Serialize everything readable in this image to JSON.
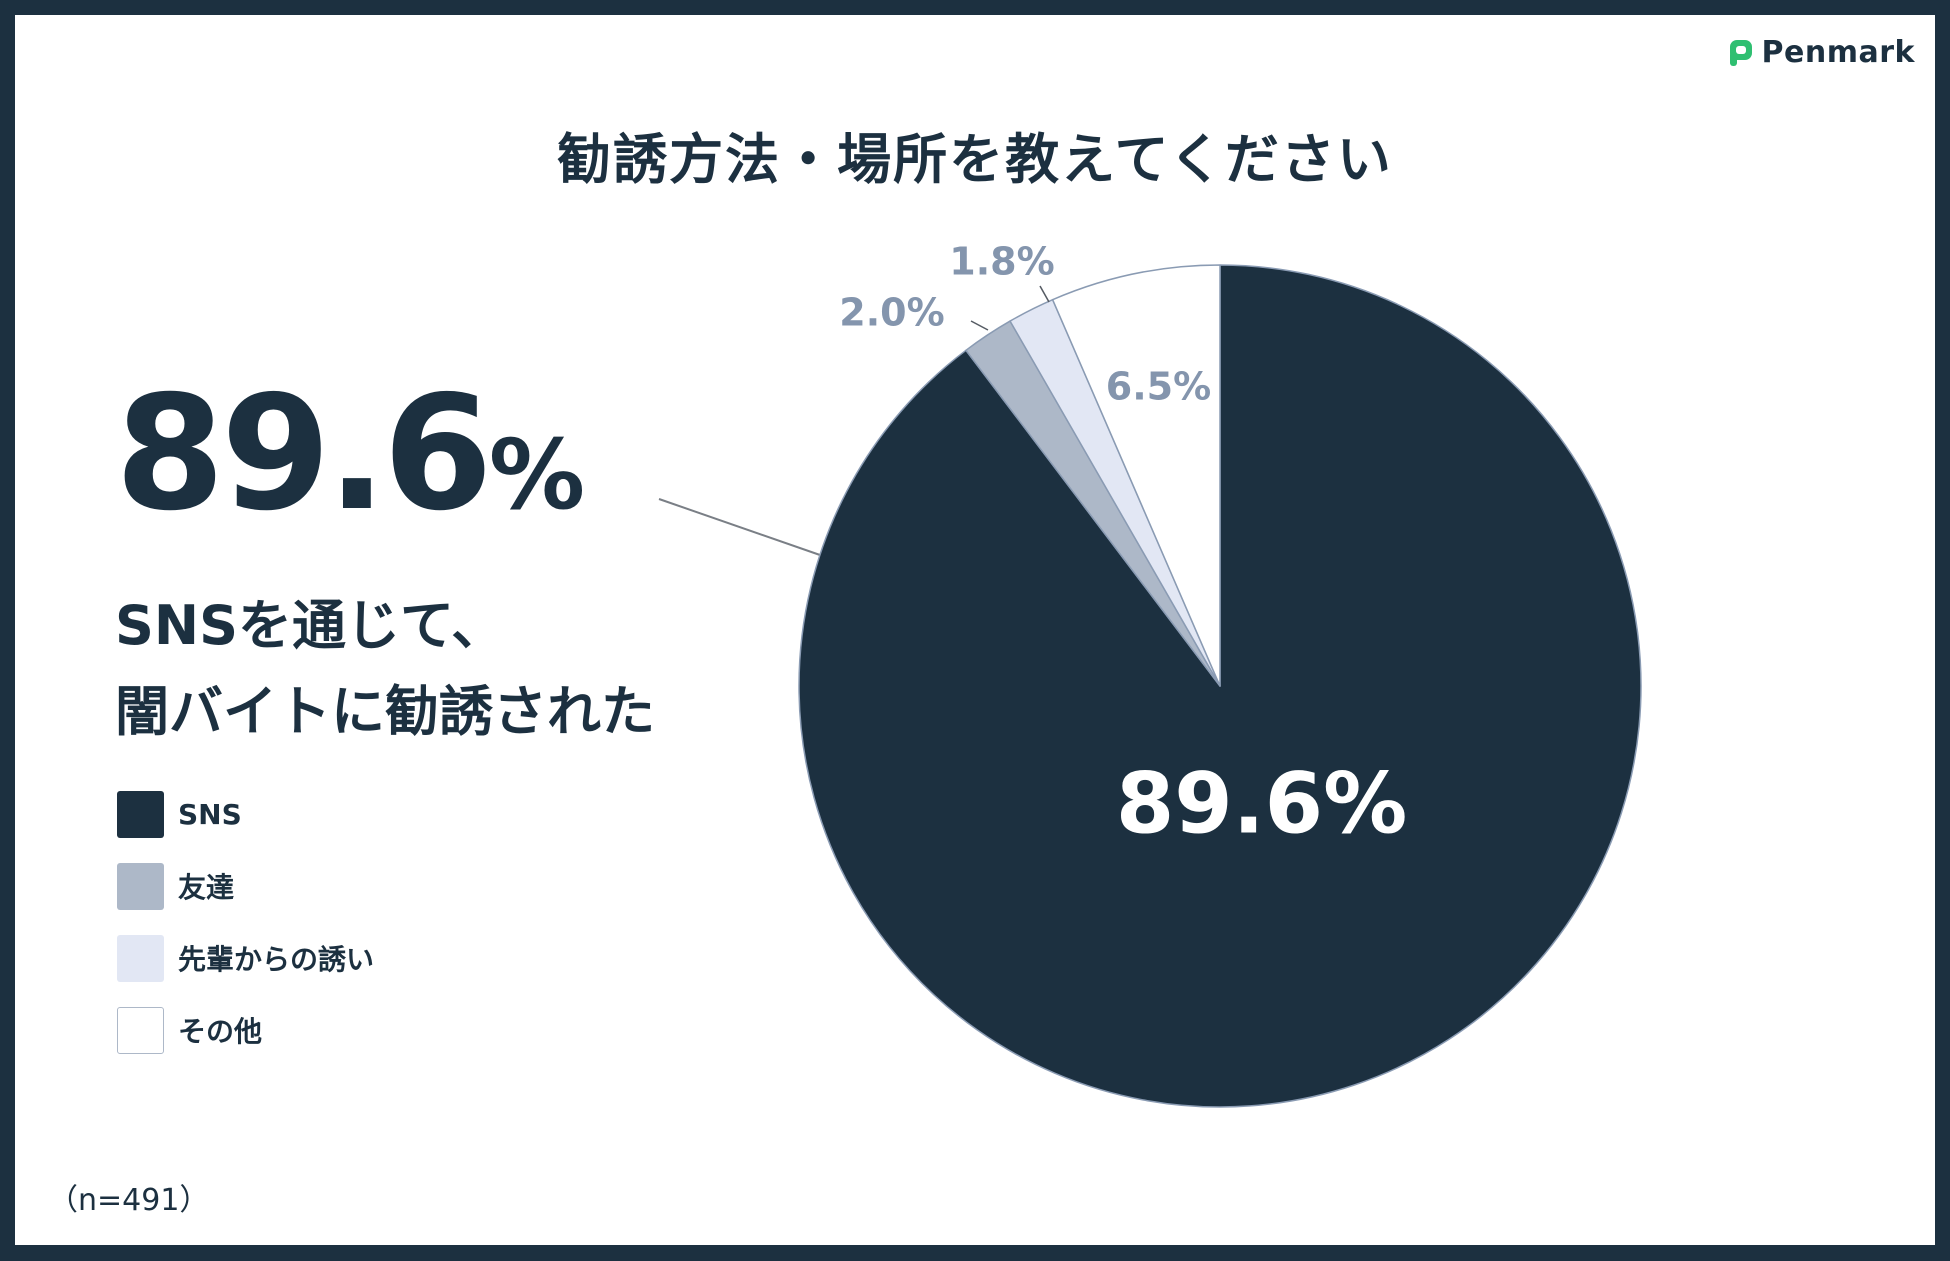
{
  "brand": {
    "name": "Penmark",
    "color": "#2fbf71"
  },
  "title": "勧誘方法・場所を教えてください",
  "headline": {
    "value": "89.6",
    "unit": "%",
    "line1": "SNSを通じて、",
    "line2": "闇バイトに勧誘された"
  },
  "sample_note": "（n=491）",
  "chart_data": {
    "type": "pie",
    "title": "勧誘方法・場所を教えてください",
    "start": "12 o'clock",
    "direction": "clockwise",
    "slices": [
      {
        "name": "SNS",
        "value": 89.6,
        "label": "89.6%",
        "color": "#1c3040",
        "label_color": "#ffffff"
      },
      {
        "name": "友達",
        "value": 2.0,
        "label": "2.0%",
        "color": "#adb8c8",
        "label_color": "#8495ad"
      },
      {
        "name": "先輩からの誘い",
        "value": 1.8,
        "label": "1.8%",
        "color": "#e2e7f4",
        "label_color": "#8495ad"
      },
      {
        "name": "その他",
        "value": 6.5,
        "label": "6.5%",
        "color": "#ffffff",
        "label_color": "#8495ad"
      }
    ],
    "legend_position": "left"
  },
  "legend": [
    {
      "label": "SNS",
      "color": "#1c3040"
    },
    {
      "label": "友達",
      "color": "#adb8c8"
    },
    {
      "label": "先輩からの誘い",
      "color": "#e2e7f4"
    },
    {
      "label": "その他",
      "color": "#ffffff"
    }
  ]
}
